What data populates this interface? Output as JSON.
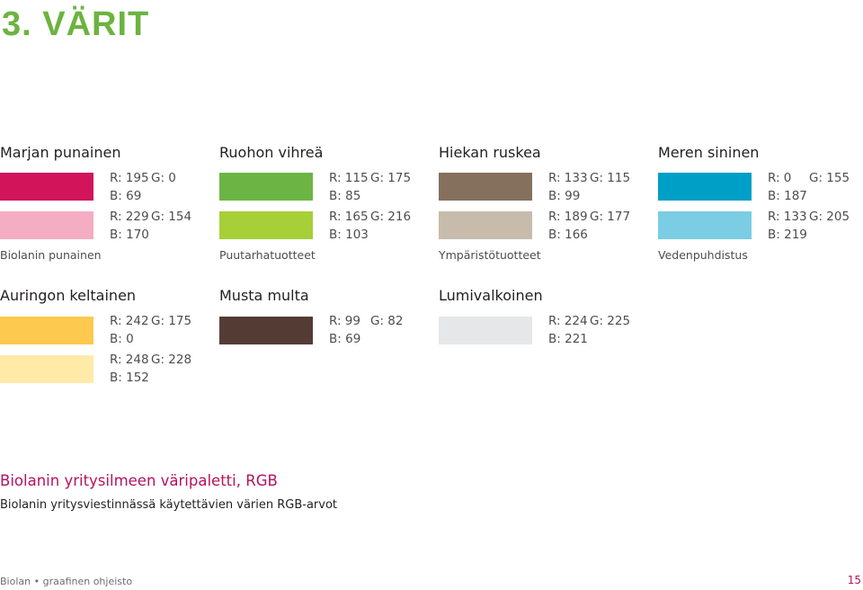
{
  "page": {
    "title": "3. VÄRIT",
    "palette_title": "Biolanin yritysilmeen väripaletti, RGB",
    "palette_subtitle": "Biolanin yritysviestinnässä käytettävien värien RGB-arvot",
    "footer_left": "Biolan • graafinen ohjeisto",
    "page_number": "15"
  },
  "groups": [
    {
      "name": "Marjan punainen",
      "swatches": [
        {
          "color": "#d2145a",
          "r": "R: 195",
          "g": "G: 0",
          "b": "B: 69"
        },
        {
          "color": "#f5adc4",
          "r": "R: 229",
          "g": "G: 154",
          "b": "B: 170"
        }
      ],
      "note": "Biolanin punainen"
    },
    {
      "name": "Ruohon vihreä",
      "swatches": [
        {
          "color": "#6cb545",
          "r": "R: 115",
          "g": "G: 175",
          "b": "B: 85"
        },
        {
          "color": "#a6cf38",
          "r": "R: 165",
          "g": "G: 216",
          "b": "B: 103"
        }
      ],
      "note": "Puutarhatuotteet"
    },
    {
      "name": "Hiekan ruskea",
      "swatches": [
        {
          "color": "#85705e",
          "r": "R: 133",
          "g": "G: 115",
          "b": "B: 99"
        },
        {
          "color": "#c7bcab",
          "r": "R: 189",
          "g": "G: 177",
          "b": "B: 166"
        }
      ],
      "note": "Ympäristötuotteet"
    },
    {
      "name": "Meren sininen",
      "swatches": [
        {
          "color": "#009fc6",
          "r": "R: 0",
          "g": "G: 155",
          "b": "B: 187"
        },
        {
          "color": "#7bcde3",
          "r": "R: 133",
          "g": "G: 205",
          "b": "B: 219"
        }
      ],
      "note": "Vedenpuhdistus"
    },
    {
      "name": "Auringon keltainen",
      "swatches": [
        {
          "color": "#fec94f",
          "r": "R: 242",
          "g": "G: 175",
          "b": "B: 0"
        },
        {
          "color": "#ffeaa8",
          "r": "R: 248",
          "g": "G: 228",
          "b": "B: 152"
        }
      ],
      "note": ""
    },
    {
      "name": "Musta multa",
      "swatches": [
        {
          "color": "#543c34",
          "r": "R: 99",
          "g": "G: 82",
          "b": "B: 69"
        }
      ],
      "note": ""
    },
    {
      "name": "Lumivalkoinen",
      "swatches": [
        {
          "color": "#e6e7e8",
          "r": "R: 224",
          "g": "G: 225",
          "b": "B: 221"
        }
      ],
      "note": ""
    }
  ]
}
